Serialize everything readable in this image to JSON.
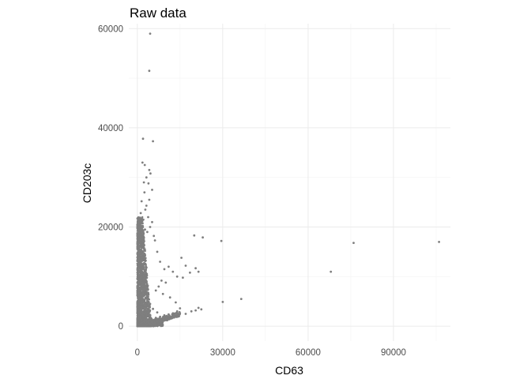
{
  "chart_data": {
    "type": "scatter",
    "title": "Raw data",
    "xlabel": "CD63",
    "ylabel": "CD203c",
    "xlim": [
      -3000,
      110000
    ],
    "ylim": [
      -3000,
      61000
    ],
    "x_ticks": [
      0,
      30000,
      60000,
      90000
    ],
    "x_tick_labels": [
      "0",
      "30000",
      "60000",
      "90000"
    ],
    "y_ticks": [
      0,
      20000,
      40000,
      60000
    ],
    "y_tick_labels": [
      "0",
      "20000",
      "40000",
      "60000"
    ],
    "grid": true,
    "point_color": "#7f7f7f",
    "points": [
      [
        4500,
        59000
      ],
      [
        4200,
        51500
      ],
      [
        2000,
        37800
      ],
      [
        5500,
        37300
      ],
      [
        1800,
        33000
      ],
      [
        2600,
        32500
      ],
      [
        4200,
        31500
      ],
      [
        4600,
        30800
      ],
      [
        3200,
        30000
      ],
      [
        2300,
        29000
      ],
      [
        3900,
        28800
      ],
      [
        5200,
        27500
      ],
      [
        2500,
        27000
      ],
      [
        4200,
        25500
      ],
      [
        1500,
        25200
      ],
      [
        3200,
        24300
      ],
      [
        2800,
        23500
      ],
      [
        1200,
        22800
      ],
      [
        3800,
        22000
      ],
      [
        2100,
        21500
      ],
      [
        5200,
        21000
      ],
      [
        1000,
        20500
      ],
      [
        4500,
        20000
      ],
      [
        2700,
        19500
      ],
      [
        3500,
        19000
      ],
      [
        1600,
        18500
      ],
      [
        5800,
        18200
      ],
      [
        20000,
        18300
      ],
      [
        23000,
        17900
      ],
      [
        29500,
        17200
      ],
      [
        76000,
        16800
      ],
      [
        106000,
        17000
      ],
      [
        6200,
        17300
      ],
      [
        7000,
        15000
      ],
      [
        8000,
        13000
      ],
      [
        9500,
        11500
      ],
      [
        11000,
        12000
      ],
      [
        12500,
        11000
      ],
      [
        14000,
        10000
      ],
      [
        15500,
        13800
      ],
      [
        17000,
        12200
      ],
      [
        18500,
        10800
      ],
      [
        20500,
        11700
      ],
      [
        21500,
        11000
      ],
      [
        16000,
        9800
      ],
      [
        10000,
        8800
      ],
      [
        8500,
        9200
      ],
      [
        7500,
        8000
      ],
      [
        6500,
        7200
      ],
      [
        9000,
        6500
      ],
      [
        11500,
        5800
      ],
      [
        13500,
        4800
      ],
      [
        15000,
        3600
      ],
      [
        17000,
        2500
      ],
      [
        19000,
        3000
      ],
      [
        20500,
        3200
      ],
      [
        21500,
        3700
      ],
      [
        22500,
        3400
      ],
      [
        30000,
        4900
      ],
      [
        36500,
        5500
      ],
      [
        68000,
        11000
      ],
      [
        14000,
        3000
      ],
      [
        12500,
        2600
      ],
      [
        11000,
        2400
      ],
      [
        9500,
        2200
      ],
      [
        8000,
        1900
      ],
      [
        6500,
        1700
      ],
      [
        5000,
        1500
      ],
      [
        10500,
        1200
      ],
      [
        12500,
        1800
      ],
      [
        7000,
        2800
      ],
      [
        5500,
        3500
      ],
      [
        4500,
        4500
      ],
      [
        3800,
        6000
      ]
    ],
    "dense_cluster": {
      "x_range": [
        0,
        5000
      ],
      "y_range": [
        0,
        22000
      ],
      "tail_to": [
        15000,
        2500
      ]
    }
  }
}
